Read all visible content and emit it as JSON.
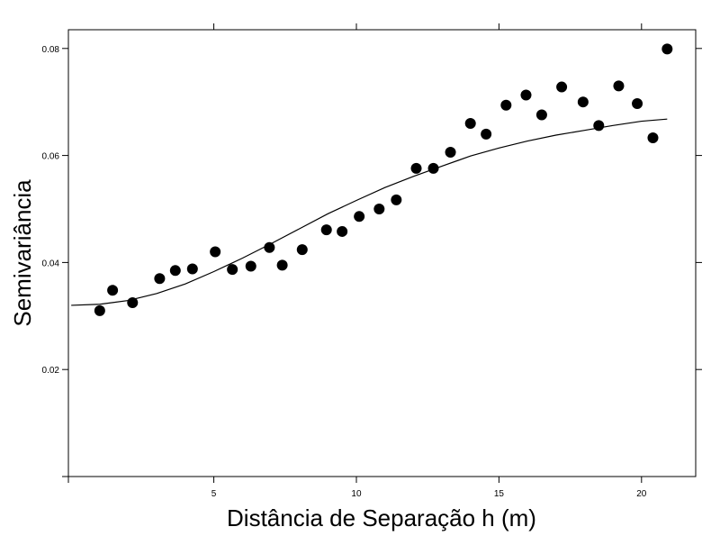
{
  "chart_data": {
    "type": "scatter",
    "xlabel": "Distância de Separação h (m)",
    "ylabel": "Semivariância",
    "xlim": [
      -0.1,
      21.9
    ],
    "ylim": [
      0.0,
      0.0835
    ],
    "x_ticks": [
      5,
      10,
      15,
      20
    ],
    "y_ticks": [
      0.02,
      0.04,
      0.06,
      0.08
    ],
    "x_tick_labels": [
      "5",
      "10",
      "15",
      "20"
    ],
    "y_tick_labels": [
      "0.02",
      "0.04",
      "0.06",
      "0.08"
    ],
    "grid": false,
    "series": [
      {
        "kind": "points",
        "x": [
          1.0,
          1.45,
          2.15,
          3.1,
          3.65,
          4.25,
          5.05,
          5.65,
          6.3,
          6.95,
          7.4,
          8.1,
          8.95,
          9.5,
          10.1,
          10.8,
          11.4,
          12.1,
          12.7,
          13.3,
          14.0,
          14.55,
          15.25,
          15.95,
          16.5,
          17.2,
          17.95,
          18.5,
          19.2,
          19.85,
          20.4,
          20.9
        ],
        "y": [
          0.031,
          0.0348,
          0.0325,
          0.037,
          0.0385,
          0.0388,
          0.042,
          0.0387,
          0.0393,
          0.0428,
          0.0395,
          0.0424,
          0.0461,
          0.0458,
          0.0486,
          0.05,
          0.0517,
          0.0576,
          0.0576,
          0.0606,
          0.066,
          0.064,
          0.0694,
          0.0713,
          0.0676,
          0.0728,
          0.07,
          0.0656,
          0.073,
          0.0697,
          0.0633,
          0.0799
        ],
        "color": "#000000"
      },
      {
        "kind": "fitted-curve",
        "x": [
          0.0,
          1.0,
          2.0,
          3.0,
          4.0,
          5.0,
          6.0,
          7.0,
          8.0,
          9.0,
          10.0,
          11.0,
          12.0,
          13.0,
          14.0,
          15.0,
          16.0,
          17.0,
          18.0,
          19.0,
          20.0,
          20.9
        ],
        "y": [
          0.032,
          0.0322,
          0.0329,
          0.0342,
          0.036,
          0.0383,
          0.0408,
          0.0435,
          0.0463,
          0.0491,
          0.0516,
          0.054,
          0.0561,
          0.058,
          0.0599,
          0.0614,
          0.0627,
          0.0638,
          0.0647,
          0.0656,
          0.0664,
          0.0668
        ],
        "color": "#000000"
      }
    ]
  }
}
